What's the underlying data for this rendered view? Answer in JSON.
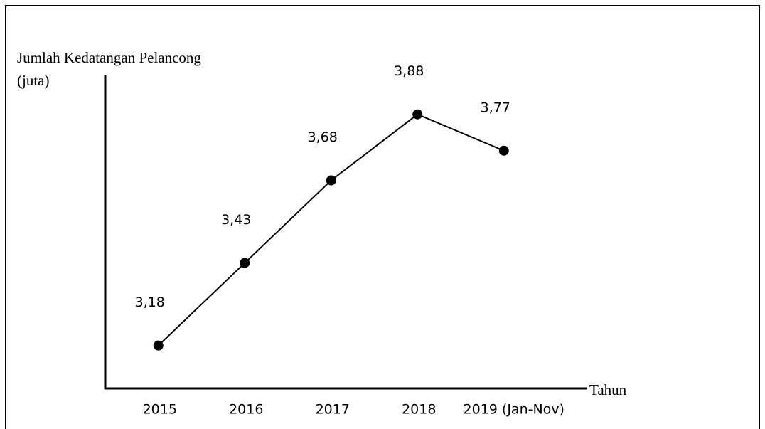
{
  "chart_data": {
    "type": "line",
    "y_label": [
      "Jumlah Kedatangan Pelancong",
      "(juta)"
    ],
    "x_label": "Tahun",
    "categories": [
      "2015",
      "2016",
      "2017",
      "2018",
      "2019 (Jan-Nov)"
    ],
    "values": [
      3.18,
      3.43,
      3.68,
      3.88,
      3.77
    ],
    "value_labels": [
      "3,18",
      "3,43",
      "3,68",
      "3,88",
      "3,77"
    ],
    "color": "#000000",
    "ylim": [
      3.05,
      4.0
    ],
    "grid": false
  }
}
